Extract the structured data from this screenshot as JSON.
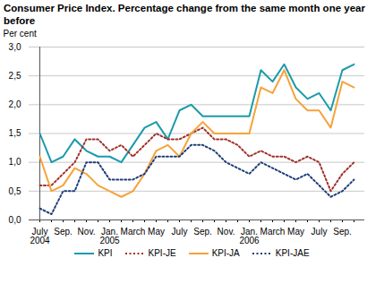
{
  "chart_data": {
    "type": "line",
    "title": "Consumer Price Index. Percentage change from the same month one year before",
    "y_label": "Per cent",
    "categories": [
      "July\n2004",
      null,
      "Sep.",
      null,
      "Nov.",
      null,
      "Jan.\n2005",
      null,
      "March",
      null,
      "May",
      null,
      "July",
      null,
      "Sep.",
      null,
      "Nov.",
      null,
      "Jan.\n2006",
      null,
      "March",
      null,
      "May",
      null,
      "July",
      null,
      "Sep.",
      null
    ],
    "series": [
      {
        "name": "KPI",
        "color": "#1a9bab",
        "line_style": "solid",
        "values": [
          1.5,
          1.0,
          1.1,
          1.4,
          1.2,
          1.1,
          1.1,
          1.0,
          1.3,
          1.6,
          1.7,
          1.4,
          1.9,
          2.0,
          1.8,
          1.8,
          1.8,
          1.8,
          1.8,
          2.6,
          2.4,
          2.7,
          2.3,
          2.1,
          2.2,
          1.9,
          2.6,
          2.7
        ]
      },
      {
        "name": "KPI-JE",
        "color": "#a0302a",
        "line_style": "dotted",
        "values": [
          0.6,
          0.6,
          0.8,
          1.0,
          1.4,
          1.4,
          1.2,
          1.3,
          1.1,
          1.3,
          1.5,
          1.4,
          1.4,
          1.5,
          1.6,
          1.4,
          1.4,
          1.3,
          1.1,
          1.2,
          1.1,
          1.1,
          1.0,
          1.1,
          1.0,
          0.5,
          0.8,
          1.0
        ]
      },
      {
        "name": "KPI-JA",
        "color": "#f5a33a",
        "line_style": "solid",
        "values": [
          1.1,
          0.5,
          0.6,
          0.9,
          0.8,
          0.6,
          0.5,
          0.4,
          0.5,
          0.8,
          1.2,
          1.3,
          1.1,
          1.5,
          1.7,
          1.5,
          1.5,
          1.5,
          1.5,
          2.3,
          2.2,
          2.6,
          2.1,
          1.9,
          1.9,
          1.6,
          2.4,
          2.3
        ]
      },
      {
        "name": "KPI-JAE",
        "color": "#1f3c7a",
        "line_style": "dotted",
        "values": [
          0.2,
          0.1,
          0.5,
          0.5,
          1.0,
          1.0,
          0.7,
          0.7,
          0.7,
          0.8,
          1.1,
          1.1,
          1.1,
          1.3,
          1.3,
          1.2,
          1.0,
          0.9,
          0.8,
          1.0,
          0.9,
          0.8,
          0.7,
          0.8,
          0.6,
          0.4,
          0.5,
          0.7
        ]
      }
    ],
    "ylim": [
      0,
      3
    ],
    "yticks": [
      {
        "value": 0,
        "label": "0,0"
      },
      {
        "value": 0.5,
        "label": "0,5"
      },
      {
        "value": 1,
        "label": "1,0"
      },
      {
        "value": 1.5,
        "label": "1,5"
      },
      {
        "value": 2,
        "label": "2,0"
      },
      {
        "value": 2.5,
        "label": "2,5"
      },
      {
        "value": 3,
        "label": "3,0"
      }
    ],
    "grid": true,
    "legend": "bottom"
  }
}
